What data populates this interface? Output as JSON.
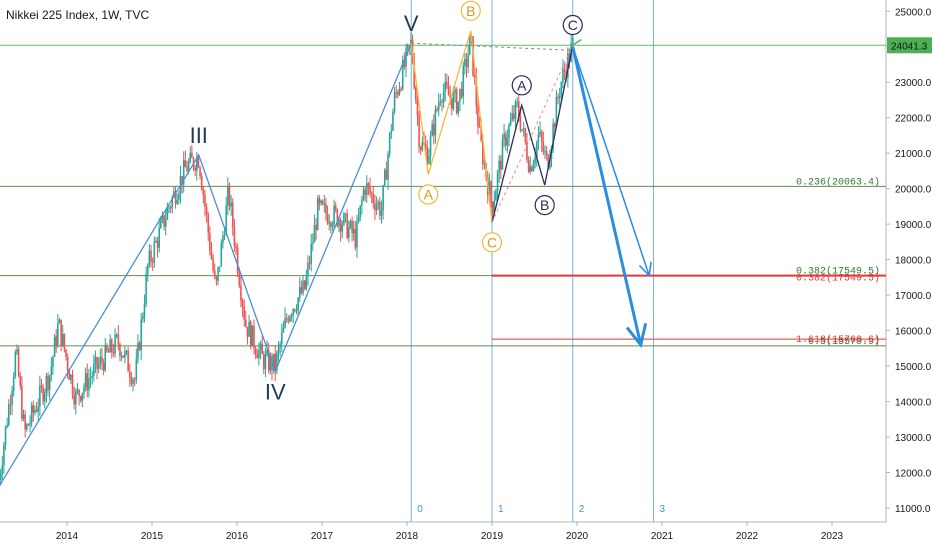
{
  "header": {
    "title": "Nikkei 225 Index, 1W, TVC"
  },
  "chart_data": {
    "type": "candlestick",
    "title": "Nikkei 225 Index, 1W, TVC",
    "x_range": [
      2013.2,
      2024.0
    ],
    "ylim": [
      10600,
      25700
    ],
    "y_ticks": [
      "11000.0",
      "12000.0",
      "13000.0",
      "14000.0",
      "15000.0",
      "16000.0",
      "17000.0",
      "18000.0",
      "19000.0",
      "20000.0",
      "21000.0",
      "22000.0",
      "23000.0",
      "24000.0",
      "25000.0"
    ],
    "x_ticks": [
      "2014",
      "2015",
      "2016",
      "2017",
      "2018",
      "2019",
      "2020",
      "2021",
      "2022",
      "2023"
    ],
    "last_price": {
      "value": 24041.3,
      "label": "24041.3",
      "color": "#4caf50"
    },
    "price_path": [
      [
        2013.2,
        11800
      ],
      [
        2013.4,
        15400
      ],
      [
        2013.5,
        13100
      ],
      [
        2013.8,
        14800
      ],
      [
        2013.9,
        16200
      ],
      [
        2014.1,
        14100
      ],
      [
        2014.3,
        14800
      ],
      [
        2014.6,
        15700
      ],
      [
        2014.8,
        14600
      ],
      [
        2014.95,
        17800
      ],
      [
        2015.2,
        19500
      ],
      [
        2015.4,
        20600
      ],
      [
        2015.55,
        20900
      ],
      [
        2015.75,
        17100
      ],
      [
        2015.9,
        19900
      ],
      [
        2016.1,
        16200
      ],
      [
        2016.3,
        15200
      ],
      [
        2016.45,
        15000
      ],
      [
        2016.6,
        16500
      ],
      [
        2016.8,
        17200
      ],
      [
        2016.95,
        19400
      ],
      [
        2017.2,
        19200
      ],
      [
        2017.4,
        18600
      ],
      [
        2017.5,
        20100
      ],
      [
        2017.7,
        19400
      ],
      [
        2017.85,
        22500
      ],
      [
        2018.05,
        24100
      ],
      [
        2018.15,
        21300
      ],
      [
        2018.25,
        21000
      ],
      [
        2018.4,
        22800
      ],
      [
        2018.6,
        22400
      ],
      [
        2018.75,
        24200
      ],
      [
        2018.85,
        21500
      ],
      [
        2019.0,
        19500
      ],
      [
        2019.15,
        21400
      ],
      [
        2019.3,
        22300
      ],
      [
        2019.45,
        20600
      ],
      [
        2019.55,
        21500
      ],
      [
        2019.65,
        20700
      ],
      [
        2019.8,
        22900
      ],
      [
        2019.95,
        24050
      ]
    ],
    "waves": {
      "impulse": [
        [
          2013.2,
          11600
        ],
        [
          2015.55,
          20950
        ],
        [
          2016.45,
          14850
        ],
        [
          2018.05,
          24100
        ]
      ],
      "impulse_labels": [
        {
          "text": "III",
          "x": 2015.55,
          "y": 20950,
          "pos": "above"
        },
        {
          "text": "IV",
          "x": 2016.45,
          "y": 14850,
          "pos": "below"
        },
        {
          "text": "V",
          "x": 2018.05,
          "y": 24100,
          "pos": "above"
        }
      ],
      "orange": [
        [
          2018.05,
          24100
        ],
        [
          2018.25,
          20400
        ],
        [
          2018.75,
          24450
        ],
        [
          2019.0,
          19050
        ]
      ],
      "orange_labels": [
        {
          "text": "A",
          "x": 2018.25,
          "y": 20400,
          "pos": "below"
        },
        {
          "text": "B",
          "x": 2018.75,
          "y": 24450,
          "pos": "above"
        },
        {
          "text": "C",
          "x": 2019.0,
          "y": 19050,
          "pos": "below"
        }
      ],
      "purple": [
        [
          2019.0,
          19050
        ],
        [
          2019.35,
          22350
        ],
        [
          2019.62,
          20100
        ],
        [
          2019.95,
          24050
        ]
      ],
      "purple_labels": [
        {
          "text": "A",
          "x": 2019.35,
          "y": 22350,
          "pos": "above"
        },
        {
          "text": "B",
          "x": 2019.62,
          "y": 20100,
          "pos": "below"
        },
        {
          "text": "C",
          "x": 2019.95,
          "y": 24050,
          "pos": "above"
        }
      ]
    },
    "horizontal_lines": [
      {
        "y": 24041.3,
        "color": "#4caf50"
      },
      {
        "y": 20063.4,
        "color": "#4a7a2a",
        "label": "0.236(20063.4)",
        "label_color": "#2e7d32"
      },
      {
        "y": 17549.5,
        "color": "#4a7a2a",
        "label": "0.382(17549.5)",
        "label_color": "#2e7d32"
      },
      {
        "y": 15570.9,
        "color": "#4a7a2a",
        "label": "0.5(15570.9)",
        "label_color": "#2e7d32"
      }
    ],
    "red_lines": [
      {
        "y": 17549.5,
        "x_start": 2019.0,
        "label": "0.382(17549.5)",
        "color": "#e53935"
      },
      {
        "y": 15760.6,
        "x_start": 2019.0,
        "label": "1.618(15760.6)",
        "color": "#e53935"
      }
    ],
    "vertical_lines": [
      {
        "x": 2018.05,
        "label": "0"
      },
      {
        "x": 2019.0,
        "label": "1"
      },
      {
        "x": 2019.95,
        "label": "2"
      },
      {
        "x": 2020.9,
        "label": "3"
      }
    ],
    "arrows": [
      {
        "from": [
          2019.95,
          24000
        ],
        "to": [
          2020.75,
          15600
        ],
        "width": 3
      },
      {
        "from": [
          2019.95,
          24000
        ],
        "to": [
          2020.85,
          17550
        ],
        "width": 1.5
      }
    ],
    "colors": {
      "bull": "#26a69a",
      "bear": "#ef5350",
      "wave_blue": "#4a8fd4",
      "wave_orange": "#f6b73c",
      "wave_purple": "#2b2b5c",
      "trend_dashed_pink": "#d98aa8"
    }
  }
}
